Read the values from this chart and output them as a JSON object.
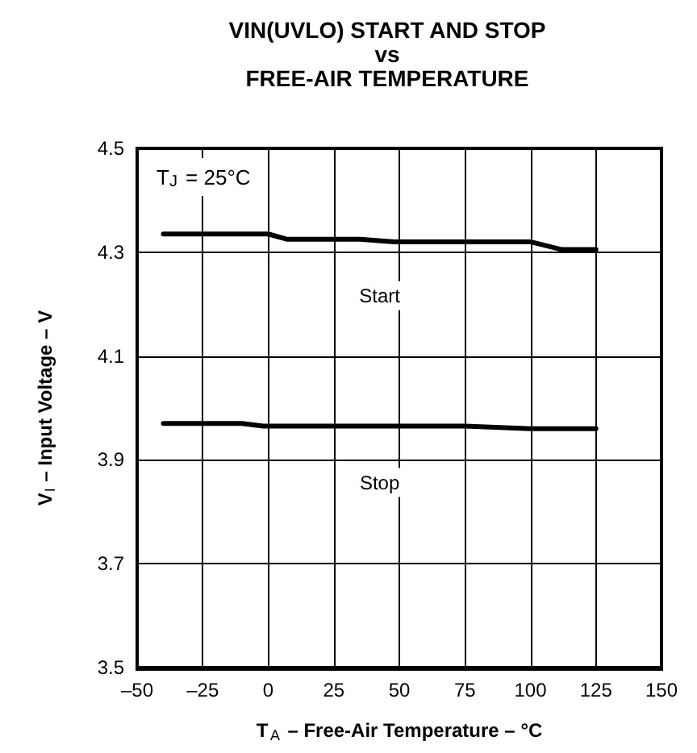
{
  "chart_data": {
    "type": "line",
    "title": "VIN(UVLO) START AND STOP\nvs\nFREE-AIR TEMPERATURE",
    "xlabel": "T$_{A}$ – Free-Air Temperature – °C",
    "ylabel": "V$_{I}$ – Input Voltage – V",
    "annotations": [
      "T$_{J}$ = 25°C"
    ],
    "series": [
      {
        "name": "Start",
        "color": "#000000",
        "x": [
          -40,
          -10,
          0,
          7,
          35,
          48,
          100,
          112,
          125
        ],
        "values": [
          4.335,
          4.335,
          4.335,
          4.325,
          4.325,
          4.32,
          4.32,
          4.305,
          4.305
        ]
      },
      {
        "name": "Stop",
        "color": "#000000",
        "x": [
          -40,
          -10,
          -2,
          75,
          100,
          125
        ],
        "values": [
          3.97,
          3.97,
          3.965,
          3.965,
          3.96,
          3.96
        ]
      }
    ],
    "xlim": [
      -50,
      150
    ],
    "xticks": [
      {
        "value": -50,
        "label": "–50"
      },
      {
        "value": -25,
        "label": "–25"
      },
      0,
      25,
      50,
      75,
      100,
      125,
      150
    ],
    "ylim": [
      3.5,
      4.5
    ],
    "yticks": [
      3.5,
      3.7,
      3.9,
      4.1,
      4.3,
      4.5
    ],
    "grid": true,
    "legend": false,
    "marker": "none",
    "line_style": "solid"
  }
}
